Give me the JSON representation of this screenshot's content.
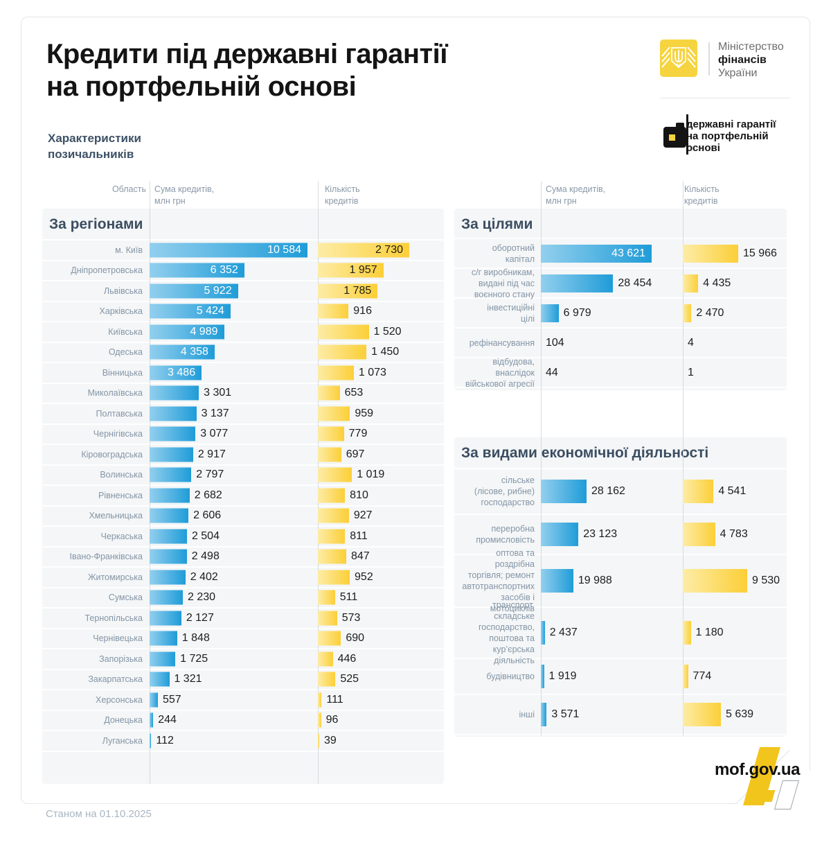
{
  "header": {
    "title": "Кредити під державні гарантії\nна портфельній основі",
    "subtitle": "Характеристики\nпозичальників",
    "ministry": {
      "line1": "Міністерство",
      "line2": "фінансів",
      "line3": "України"
    },
    "badge": "державні гарантії\nна портфельній\nоснові"
  },
  "columns": {
    "region": "Область",
    "sum": "Сума кредитів,\nмлн грн",
    "count": "Кількість\nкредитів"
  },
  "chart_data": [
    {
      "type": "bar",
      "title": "За регіонами",
      "orientation": "horizontal",
      "legend_position": "top",
      "grid": false,
      "categories": [
        "м. Київ",
        "Дніпропетровська",
        "Львівська",
        "Харківська",
        "Київська",
        "Одеська",
        "Вінницька",
        "Миколаївська",
        "Полтавська",
        "Чернігівська",
        "Кіровоградська",
        "Волинська",
        "Рівненська",
        "Хмельницька",
        "Черкаська",
        "Івано-Франківська",
        "Житомирська",
        "Сумська",
        "Тернопільська",
        "Чернівецька",
        "Запорізька",
        "Закарпатська",
        "Херсонська",
        "Донецька",
        "Луганська"
      ],
      "series": [
        {
          "name": "Сума кредитів, млн грн",
          "values": [
            10584,
            6352,
            5922,
            5424,
            4989,
            4358,
            3486,
            3301,
            3137,
            3077,
            2917,
            2797,
            2682,
            2606,
            2504,
            2498,
            2402,
            2230,
            2127,
            1848,
            1725,
            1321,
            557,
            244,
            112
          ]
        },
        {
          "name": "Кількість кредитів",
          "values": [
            2730,
            1957,
            1785,
            916,
            1520,
            1450,
            1073,
            653,
            959,
            779,
            697,
            1019,
            810,
            927,
            811,
            847,
            952,
            511,
            573,
            690,
            446,
            525,
            111,
            96,
            39
          ]
        }
      ],
      "xlim_sum": [
        0,
        10584
      ],
      "xlim_count": [
        0,
        2730
      ]
    },
    {
      "type": "bar",
      "title": "За цілями",
      "orientation": "horizontal",
      "grid": false,
      "categories": [
        "оборотний\nкапітал",
        "с/г виробникам,\nвидані під час\nвоєнного стану",
        "інвестиційні\nцілі",
        "рефінансування",
        "відбудова, внаслідок\nвійськової агресії"
      ],
      "series": [
        {
          "name": "Сума кредитів, млн грн",
          "values": [
            43621,
            28454,
            6979,
            104,
            44
          ]
        },
        {
          "name": "Кількість кредитів",
          "values": [
            15966,
            4435,
            2470,
            4,
            1
          ]
        }
      ],
      "xlim_sum": [
        0,
        43621
      ],
      "xlim_count": [
        0,
        15966
      ]
    },
    {
      "type": "bar",
      "title": "За видами економічної діяльності",
      "orientation": "horizontal",
      "grid": false,
      "categories": [
        "сільське\n(лісове, рибне)\nгосподарство",
        "переробна\nпромисловість",
        "оптова та роздрібна\nторгівля; ремонт\nавтотранспортних\nзасобів і мотоциклів",
        "транспорт, складське\nгосподарство,\nпоштова та\nкур’єрська діяльність",
        "будівництво",
        "інші"
      ],
      "series": [
        {
          "name": "Сума кредитів, млн грн",
          "values": [
            28162,
            23123,
            19988,
            2437,
            1919,
            3571
          ]
        },
        {
          "name": "Кількість кредитів",
          "values": [
            4541,
            4783,
            9530,
            1180,
            774,
            5639
          ]
        }
      ],
      "xlim_sum": [
        0,
        28162
      ],
      "xlim_count": [
        0,
        9530
      ]
    }
  ],
  "footer": {
    "date_note": "Станом на 01.10.2025",
    "site": "mof.gov.ua"
  },
  "colors": {
    "bar_blue_from": "#92cfee",
    "bar_blue_to": "#1f9cd8",
    "bar_yellow_from": "#fdeca6",
    "bar_yellow_to": "#fccf38",
    "brand_yellow": "#f6d43f",
    "title_dark": "#141414",
    "section_title": "#3b4d61",
    "label_gray": "#8495a6",
    "panel_bg": "#f4f6f7"
  }
}
